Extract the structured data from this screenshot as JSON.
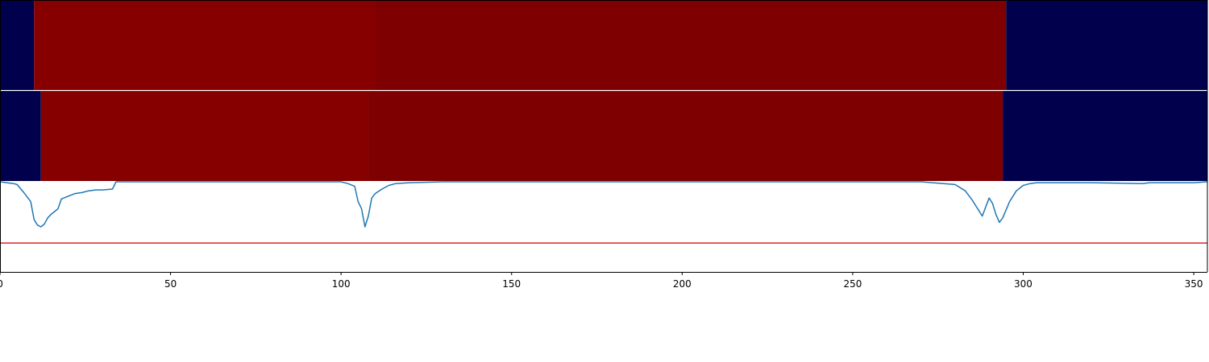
{
  "chart_data": {
    "type": "heatmap",
    "xlim": [
      0,
      354
    ],
    "x_ticks": [
      0,
      50,
      100,
      150,
      200,
      250,
      300,
      350
    ],
    "colors": {
      "background_low": "#00004c",
      "segment_a": "#870000",
      "segment_b": "#7f0000",
      "signal_line": "#1f77b4",
      "threshold_line": "#d62728",
      "separator": "#ffffff",
      "axis": "#000000"
    },
    "rows": [
      {
        "segments": [
          {
            "start": 0,
            "end": 10,
            "level": "low"
          },
          {
            "start": 10,
            "end": 110,
            "level": "a"
          },
          {
            "start": 110,
            "end": 295,
            "level": "b"
          },
          {
            "start": 295,
            "end": 354,
            "level": "low"
          }
        ]
      },
      {
        "segments": [
          {
            "start": 0,
            "end": 12,
            "level": "low"
          },
          {
            "start": 12,
            "end": 108,
            "level": "a"
          },
          {
            "start": 108,
            "end": 294,
            "level": "b"
          },
          {
            "start": 294,
            "end": 354,
            "level": "low"
          }
        ]
      }
    ],
    "signal": {
      "ylim": [
        -1.0,
        0.0
      ],
      "threshold": -0.68,
      "x": [
        0,
        2,
        4,
        5,
        7,
        9,
        10,
        11,
        12,
        13,
        14,
        15,
        16,
        17,
        18,
        20,
        22,
        24,
        26,
        28,
        30,
        33,
        34,
        36,
        50,
        100,
        102,
        104,
        105,
        106,
        107,
        108,
        109,
        110,
        112,
        114,
        116,
        120,
        130,
        200,
        270,
        280,
        283,
        285,
        288,
        290,
        291,
        292,
        293,
        294,
        296,
        298,
        300,
        302,
        304,
        320,
        335,
        337,
        350,
        354
      ],
      "y": [
        0.0,
        -0.01,
        -0.02,
        -0.03,
        -0.12,
        -0.22,
        -0.42,
        -0.48,
        -0.5,
        -0.47,
        -0.4,
        -0.36,
        -0.33,
        -0.3,
        -0.19,
        -0.16,
        -0.13,
        -0.12,
        -0.1,
        -0.09,
        -0.09,
        -0.08,
        0.0,
        0.0,
        0.0,
        0.0,
        -0.02,
        -0.05,
        -0.22,
        -0.3,
        -0.5,
        -0.38,
        -0.18,
        -0.13,
        -0.08,
        -0.04,
        -0.02,
        -0.01,
        0.0,
        0.0,
        0.0,
        -0.03,
        -0.1,
        -0.2,
        -0.38,
        -0.18,
        -0.24,
        -0.36,
        -0.45,
        -0.4,
        -0.22,
        -0.1,
        -0.04,
        -0.02,
        -0.01,
        -0.01,
        -0.02,
        -0.01,
        -0.01,
        0.0
      ]
    }
  }
}
